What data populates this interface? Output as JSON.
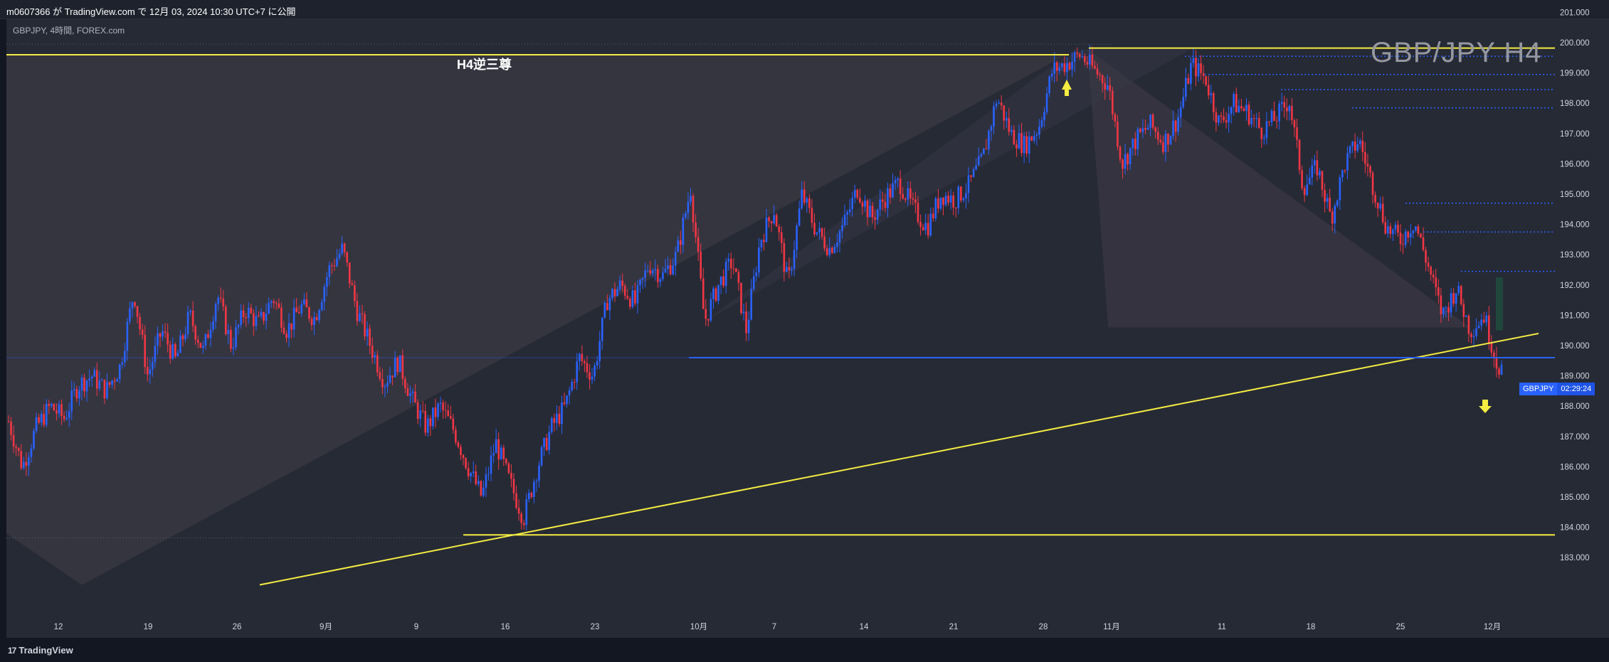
{
  "header": {
    "published_by": "m0607366 が TradingView.com で 12月 03, 2024 10:30 UTC+7 に公開"
  },
  "chart_info": {
    "symbol_line": "GBPJPY, 4時間, FOREX.com",
    "watermark": "GBP/JPY H4",
    "annotation": "H4逆三尊"
  },
  "price_badge": {
    "symbol": "GBPJPY",
    "countdown": "02:29:24"
  },
  "footer": {
    "brand": "TradingView"
  },
  "colors": {
    "up": "#2962ff",
    "down": "#f23645",
    "trendline": "#f5ec42",
    "level": "#2962ff"
  },
  "chart_data": {
    "type": "candlestick",
    "y_ticks": [
      "201.000",
      "200.000",
      "199.000",
      "198.000",
      "197.000",
      "196.000",
      "195.000",
      "194.000",
      "193.000",
      "192.000",
      "191.000",
      "190.000",
      "189.000",
      "188.000",
      "187.000",
      "186.000",
      "185.000",
      "184.000",
      "183.000"
    ],
    "x_ticks": [
      "12",
      "19",
      "26",
      "9月",
      "9",
      "16",
      "23",
      "10月",
      "7",
      "14",
      "21",
      "28",
      "11月",
      "11",
      "18",
      "25",
      "12月"
    ],
    "ylim": [
      182.1,
      201.2
    ],
    "price_path": [
      [
        0,
        187.5
      ],
      [
        1,
        186.0
      ],
      [
        2,
        187.3
      ],
      [
        3,
        188.0
      ],
      [
        4,
        187.6
      ],
      [
        5,
        188.7
      ],
      [
        6,
        189.0
      ],
      [
        7,
        188.5
      ],
      [
        8,
        189.3
      ],
      [
        9,
        191.8
      ],
      [
        10,
        189.0
      ],
      [
        11,
        190.5
      ],
      [
        12,
        189.5
      ],
      [
        13,
        191.0
      ],
      [
        14,
        189.8
      ],
      [
        15,
        191.7
      ],
      [
        16,
        190.0
      ],
      [
        17,
        191.2
      ],
      [
        18,
        190.7
      ],
      [
        19,
        191.6
      ],
      [
        20,
        190.5
      ],
      [
        21,
        191.3
      ],
      [
        22,
        190.9
      ],
      [
        23,
        192.5
      ],
      [
        24,
        193.2
      ],
      [
        25,
        191.2
      ],
      [
        26,
        190.0
      ],
      [
        27,
        188.8
      ],
      [
        28,
        189.5
      ],
      [
        29,
        188.2
      ],
      [
        30,
        187.3
      ],
      [
        31,
        188.0
      ],
      [
        32,
        187.2
      ],
      [
        33,
        186.0
      ],
      [
        34,
        185.0
      ],
      [
        35,
        186.8
      ],
      [
        36,
        185.5
      ],
      [
        37,
        184.3
      ],
      [
        38,
        186.0
      ],
      [
        39,
        187.3
      ],
      [
        40,
        188.0
      ],
      [
        41,
        189.6
      ],
      [
        42,
        189.0
      ],
      [
        43,
        191.5
      ],
      [
        44,
        192.0
      ],
      [
        45,
        191.4
      ],
      [
        46,
        192.7
      ],
      [
        47,
        192.3
      ],
      [
        48,
        193.0
      ],
      [
        49,
        195.2
      ],
      [
        50,
        190.8
      ],
      [
        51,
        192.0
      ],
      [
        52,
        192.8
      ],
      [
        53,
        190.5
      ],
      [
        54,
        193.5
      ],
      [
        55,
        194.5
      ],
      [
        56,
        192.0
      ],
      [
        57,
        195.0
      ],
      [
        58,
        193.8
      ],
      [
        59,
        193.2
      ],
      [
        60,
        194.0
      ],
      [
        61,
        195.2
      ],
      [
        62,
        194.2
      ],
      [
        63,
        194.9
      ],
      [
        64,
        195.4
      ],
      [
        65,
        194.5
      ],
      [
        66,
        193.9
      ],
      [
        67,
        195.0
      ],
      [
        68,
        194.8
      ],
      [
        69,
        195.3
      ],
      [
        70,
        196.2
      ],
      [
        71,
        198.2
      ],
      [
        72,
        197.0
      ],
      [
        73,
        196.6
      ],
      [
        74,
        197.2
      ],
      [
        75,
        199.1
      ],
      [
        76,
        199.3
      ],
      [
        77,
        199.6
      ],
      [
        78,
        199.1
      ],
      [
        79,
        198.6
      ],
      [
        80,
        196.0
      ],
      [
        81,
        196.8
      ],
      [
        82,
        197.3
      ],
      [
        83,
        196.7
      ],
      [
        84,
        197.5
      ],
      [
        85,
        199.3
      ],
      [
        86,
        198.8
      ],
      [
        87,
        197.3
      ],
      [
        88,
        198.0
      ],
      [
        89,
        197.7
      ],
      [
        90,
        197.1
      ],
      [
        91,
        197.5
      ],
      [
        92,
        198.1
      ],
      [
        93,
        195.2
      ],
      [
        94,
        195.9
      ],
      [
        95,
        194.2
      ],
      [
        96,
        196.0
      ],
      [
        97,
        196.8
      ],
      [
        98,
        195.3
      ],
      [
        99,
        193.9
      ],
      [
        100,
        193.5
      ],
      [
        101,
        194.1
      ],
      [
        102,
        192.6
      ],
      [
        103,
        191.0
      ],
      [
        104,
        191.9
      ],
      [
        105,
        190.5
      ],
      [
        106,
        191.0
      ],
      [
        107,
        189.3
      ]
    ],
    "levels": [
      {
        "label": "neckline_top",
        "price": 199.6
      },
      {
        "label": "high_line",
        "price": 199.8
      },
      {
        "label": "support_low",
        "price": 183.8
      },
      {
        "label": "support_mid",
        "price": 189.6
      }
    ],
    "current_price": 189.55
  }
}
